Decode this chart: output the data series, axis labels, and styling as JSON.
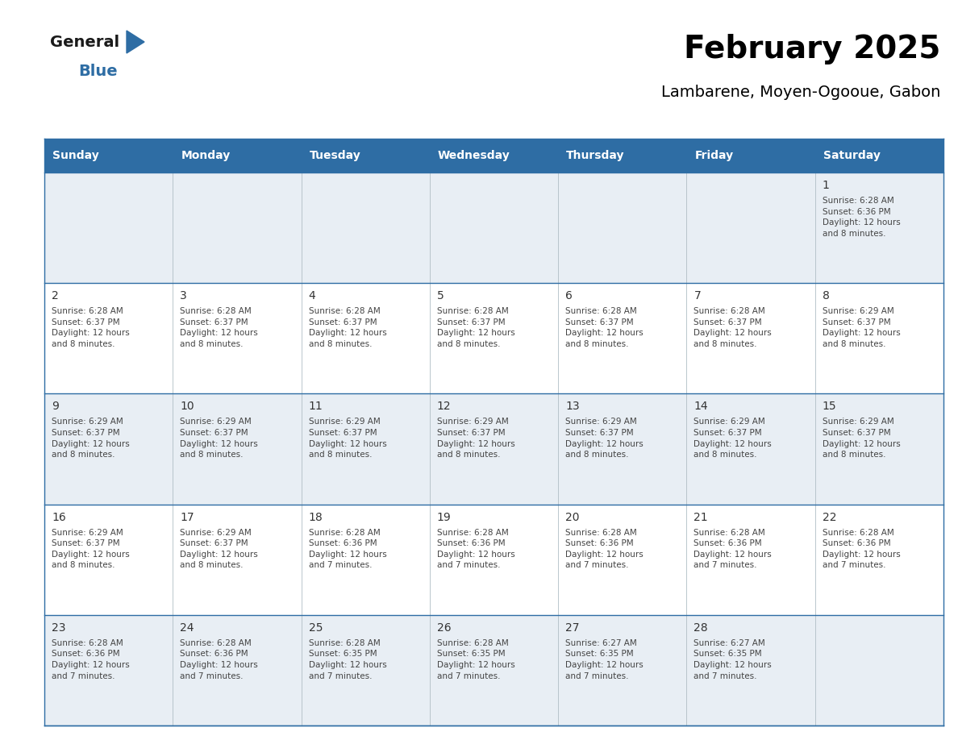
{
  "title": "February 2025",
  "subtitle": "Lambarene, Moyen-Ogooue, Gabon",
  "header_bg": "#2E6DA4",
  "header_text_color": "#FFFFFF",
  "cell_bg_light": "#E8EEF4",
  "cell_bg_white": "#FFFFFF",
  "border_color": "#2E6DA4",
  "grid_line_color": "#B0BEC5",
  "text_color": "#444444",
  "day_num_color": "#333333",
  "days_of_week": [
    "Sunday",
    "Monday",
    "Tuesday",
    "Wednesday",
    "Thursday",
    "Friday",
    "Saturday"
  ],
  "calendar_data": [
    [
      {
        "day": null,
        "info": ""
      },
      {
        "day": null,
        "info": ""
      },
      {
        "day": null,
        "info": ""
      },
      {
        "day": null,
        "info": ""
      },
      {
        "day": null,
        "info": ""
      },
      {
        "day": null,
        "info": ""
      },
      {
        "day": 1,
        "info": "Sunrise: 6:28 AM\nSunset: 6:36 PM\nDaylight: 12 hours\nand 8 minutes."
      }
    ],
    [
      {
        "day": 2,
        "info": "Sunrise: 6:28 AM\nSunset: 6:37 PM\nDaylight: 12 hours\nand 8 minutes."
      },
      {
        "day": 3,
        "info": "Sunrise: 6:28 AM\nSunset: 6:37 PM\nDaylight: 12 hours\nand 8 minutes."
      },
      {
        "day": 4,
        "info": "Sunrise: 6:28 AM\nSunset: 6:37 PM\nDaylight: 12 hours\nand 8 minutes."
      },
      {
        "day": 5,
        "info": "Sunrise: 6:28 AM\nSunset: 6:37 PM\nDaylight: 12 hours\nand 8 minutes."
      },
      {
        "day": 6,
        "info": "Sunrise: 6:28 AM\nSunset: 6:37 PM\nDaylight: 12 hours\nand 8 minutes."
      },
      {
        "day": 7,
        "info": "Sunrise: 6:28 AM\nSunset: 6:37 PM\nDaylight: 12 hours\nand 8 minutes."
      },
      {
        "day": 8,
        "info": "Sunrise: 6:29 AM\nSunset: 6:37 PM\nDaylight: 12 hours\nand 8 minutes."
      }
    ],
    [
      {
        "day": 9,
        "info": "Sunrise: 6:29 AM\nSunset: 6:37 PM\nDaylight: 12 hours\nand 8 minutes."
      },
      {
        "day": 10,
        "info": "Sunrise: 6:29 AM\nSunset: 6:37 PM\nDaylight: 12 hours\nand 8 minutes."
      },
      {
        "day": 11,
        "info": "Sunrise: 6:29 AM\nSunset: 6:37 PM\nDaylight: 12 hours\nand 8 minutes."
      },
      {
        "day": 12,
        "info": "Sunrise: 6:29 AM\nSunset: 6:37 PM\nDaylight: 12 hours\nand 8 minutes."
      },
      {
        "day": 13,
        "info": "Sunrise: 6:29 AM\nSunset: 6:37 PM\nDaylight: 12 hours\nand 8 minutes."
      },
      {
        "day": 14,
        "info": "Sunrise: 6:29 AM\nSunset: 6:37 PM\nDaylight: 12 hours\nand 8 minutes."
      },
      {
        "day": 15,
        "info": "Sunrise: 6:29 AM\nSunset: 6:37 PM\nDaylight: 12 hours\nand 8 minutes."
      }
    ],
    [
      {
        "day": 16,
        "info": "Sunrise: 6:29 AM\nSunset: 6:37 PM\nDaylight: 12 hours\nand 8 minutes."
      },
      {
        "day": 17,
        "info": "Sunrise: 6:29 AM\nSunset: 6:37 PM\nDaylight: 12 hours\nand 8 minutes."
      },
      {
        "day": 18,
        "info": "Sunrise: 6:28 AM\nSunset: 6:36 PM\nDaylight: 12 hours\nand 7 minutes."
      },
      {
        "day": 19,
        "info": "Sunrise: 6:28 AM\nSunset: 6:36 PM\nDaylight: 12 hours\nand 7 minutes."
      },
      {
        "day": 20,
        "info": "Sunrise: 6:28 AM\nSunset: 6:36 PM\nDaylight: 12 hours\nand 7 minutes."
      },
      {
        "day": 21,
        "info": "Sunrise: 6:28 AM\nSunset: 6:36 PM\nDaylight: 12 hours\nand 7 minutes."
      },
      {
        "day": 22,
        "info": "Sunrise: 6:28 AM\nSunset: 6:36 PM\nDaylight: 12 hours\nand 7 minutes."
      }
    ],
    [
      {
        "day": 23,
        "info": "Sunrise: 6:28 AM\nSunset: 6:36 PM\nDaylight: 12 hours\nand 7 minutes."
      },
      {
        "day": 24,
        "info": "Sunrise: 6:28 AM\nSunset: 6:36 PM\nDaylight: 12 hours\nand 7 minutes."
      },
      {
        "day": 25,
        "info": "Sunrise: 6:28 AM\nSunset: 6:35 PM\nDaylight: 12 hours\nand 7 minutes."
      },
      {
        "day": 26,
        "info": "Sunrise: 6:28 AM\nSunset: 6:35 PM\nDaylight: 12 hours\nand 7 minutes."
      },
      {
        "day": 27,
        "info": "Sunrise: 6:27 AM\nSunset: 6:35 PM\nDaylight: 12 hours\nand 7 minutes."
      },
      {
        "day": 28,
        "info": "Sunrise: 6:27 AM\nSunset: 6:35 PM\nDaylight: 12 hours\nand 7 minutes."
      },
      {
        "day": null,
        "info": ""
      }
    ]
  ],
  "logo_general_color": "#1a1a1a",
  "logo_blue_color": "#2E6DA4",
  "logo_triangle_color": "#2E6DA4",
  "fig_width": 11.88,
  "fig_height": 9.18,
  "fig_dpi": 100
}
